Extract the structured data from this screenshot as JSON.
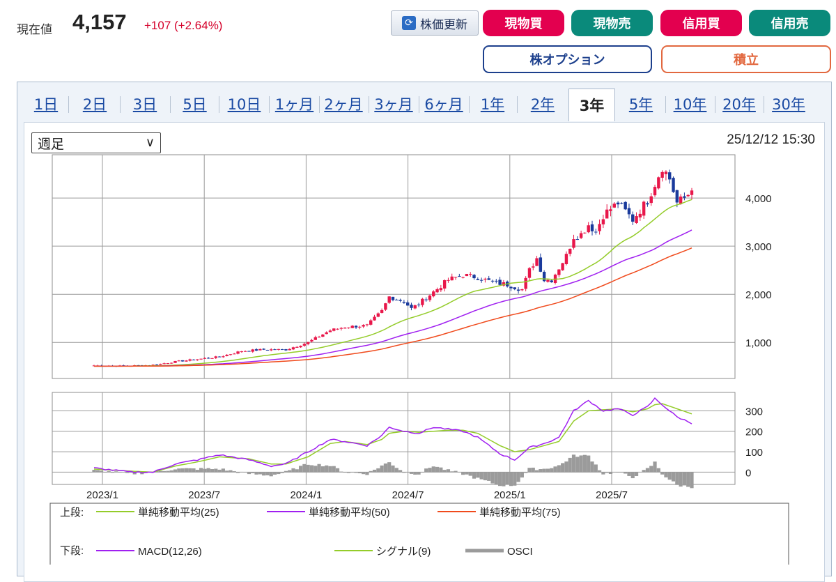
{
  "header": {
    "price_label": "現在値",
    "price_value": "4,157",
    "price_change": "+107 (+2.64%)",
    "refresh_label": "株価更新",
    "buttons": [
      {
        "label": "現物買",
        "color": "#e3004f"
      },
      {
        "label": "現物売",
        "color": "#0a8a7b"
      },
      {
        "label": "信用買",
        "color": "#e3004f"
      },
      {
        "label": "信用売",
        "color": "#0a8a7b"
      }
    ],
    "option_label": "株オプション",
    "tsumitate_label": "積立"
  },
  "tabs": [
    "1日",
    "2日",
    "3日",
    "5日",
    "10日",
    "1ヶ月",
    "2ヶ月",
    "3ヶ月",
    "6ヶ月",
    "1年",
    "2年",
    "3年",
    "5年",
    "10年",
    "20年",
    "30年"
  ],
  "active_tab": "3年",
  "period_select": "週足",
  "timestamp": "25/12/12 15:30",
  "colors": {
    "up": "#e8174a",
    "down": "#1a3a9c",
    "ma25": "#94cc2a",
    "ma50": "#a020f0",
    "ma75": "#f04a1c",
    "macd": "#a020f0",
    "signal": "#94cc2a",
    "osci": "#9b9b9b"
  },
  "chart_data": [
    {
      "type": "candlestick",
      "ylim": [
        250,
        4900
      ],
      "yticks": [
        1000,
        2000,
        3000,
        4000
      ],
      "ytick_labels": [
        "1,000",
        "2,000",
        "3,000",
        "4,000"
      ],
      "x_range_months": [
        "2022-11",
        "2025-12"
      ],
      "x_ticks": [
        "2023/1",
        "2023/7",
        "2024/1",
        "2024/7",
        "2025/1",
        "2025/7"
      ],
      "close_anchors": [
        [
          0,
          520
        ],
        [
          8,
          510
        ],
        [
          16,
          530
        ],
        [
          22,
          600
        ],
        [
          28,
          650
        ],
        [
          34,
          700
        ],
        [
          40,
          820
        ],
        [
          46,
          850
        ],
        [
          52,
          850
        ],
        [
          58,
          1000
        ],
        [
          64,
          1250
        ],
        [
          68,
          1320
        ],
        [
          74,
          1350
        ],
        [
          78,
          1650
        ],
        [
          80,
          1950
        ],
        [
          84,
          1850
        ],
        [
          86,
          1700
        ],
        [
          88,
          1800
        ],
        [
          92,
          2050
        ],
        [
          96,
          2300
        ],
        [
          100,
          2400
        ],
        [
          104,
          2350
        ],
        [
          108,
          2250
        ],
        [
          112,
          2200
        ],
        [
          116,
          2100
        ],
        [
          118,
          2500
        ],
        [
          120,
          2750
        ],
        [
          122,
          2300
        ],
        [
          124,
          2300
        ],
        [
          128,
          2800
        ],
        [
          130,
          3200
        ],
        [
          132,
          3250
        ],
        [
          134,
          3450
        ],
        [
          136,
          3300
        ],
        [
          138,
          3650
        ],
        [
          142,
          3900
        ],
        [
          146,
          3550
        ],
        [
          150,
          3950
        ],
        [
          152,
          4300
        ],
        [
          154,
          4650
        ],
        [
          156,
          4400
        ],
        [
          158,
          3900
        ],
        [
          160,
          4000
        ],
        [
          162,
          4157
        ]
      ],
      "ma25_end": 3850,
      "ma50_end": 3240,
      "ma75_end": 2850,
      "legend": {
        "upper_prefix": "上段:",
        "lower_prefix": "下段:",
        "upper": [
          "単純移動平均(25)",
          "単純移動平均(50)",
          "単純移動平均(75)"
        ],
        "lower": [
          "MACD(12,26)",
          "シグナル(9)",
          "OSCI"
        ]
      }
    },
    {
      "type": "line",
      "name_series": [
        "MACD(12,26)",
        "シグナル(9)",
        "OSCI"
      ],
      "ylim": [
        -60,
        390
      ],
      "yticks": [
        0,
        100,
        200,
        300
      ],
      "macd_anchors": [
        [
          0,
          20
        ],
        [
          10,
          0
        ],
        [
          16,
          0
        ],
        [
          22,
          40
        ],
        [
          28,
          60
        ],
        [
          34,
          85
        ],
        [
          42,
          60
        ],
        [
          48,
          30
        ],
        [
          52,
          40
        ],
        [
          58,
          100
        ],
        [
          64,
          160
        ],
        [
          68,
          150
        ],
        [
          74,
          130
        ],
        [
          78,
          180
        ],
        [
          80,
          220
        ],
        [
          84,
          200
        ],
        [
          88,
          190
        ],
        [
          92,
          220
        ],
        [
          96,
          210
        ],
        [
          100,
          200
        ],
        [
          104,
          170
        ],
        [
          110,
          90
        ],
        [
          114,
          60
        ],
        [
          118,
          120
        ],
        [
          122,
          140
        ],
        [
          126,
          170
        ],
        [
          130,
          300
        ],
        [
          134,
          350
        ],
        [
          138,
          300
        ],
        [
          142,
          310
        ],
        [
          146,
          280
        ],
        [
          150,
          320
        ],
        [
          152,
          360
        ],
        [
          154,
          330
        ],
        [
          158,
          270
        ],
        [
          162,
          240
        ]
      ],
      "signal_anchors": [
        [
          0,
          15
        ],
        [
          10,
          5
        ],
        [
          16,
          0
        ],
        [
          22,
          30
        ],
        [
          28,
          50
        ],
        [
          34,
          75
        ],
        [
          42,
          65
        ],
        [
          48,
          40
        ],
        [
          52,
          40
        ],
        [
          58,
          75
        ],
        [
          64,
          140
        ],
        [
          68,
          150
        ],
        [
          74,
          135
        ],
        [
          78,
          160
        ],
        [
          80,
          190
        ],
        [
          84,
          200
        ],
        [
          88,
          195
        ],
        [
          92,
          200
        ],
        [
          96,
          205
        ],
        [
          100,
          205
        ],
        [
          104,
          190
        ],
        [
          110,
          130
        ],
        [
          114,
          100
        ],
        [
          118,
          110
        ],
        [
          122,
          130
        ],
        [
          126,
          150
        ],
        [
          130,
          250
        ],
        [
          134,
          300
        ],
        [
          138,
          305
        ],
        [
          142,
          310
        ],
        [
          146,
          295
        ],
        [
          150,
          310
        ],
        [
          152,
          330
        ],
        [
          154,
          335
        ],
        [
          158,
          310
        ],
        [
          162,
          285
        ]
      ]
    }
  ]
}
